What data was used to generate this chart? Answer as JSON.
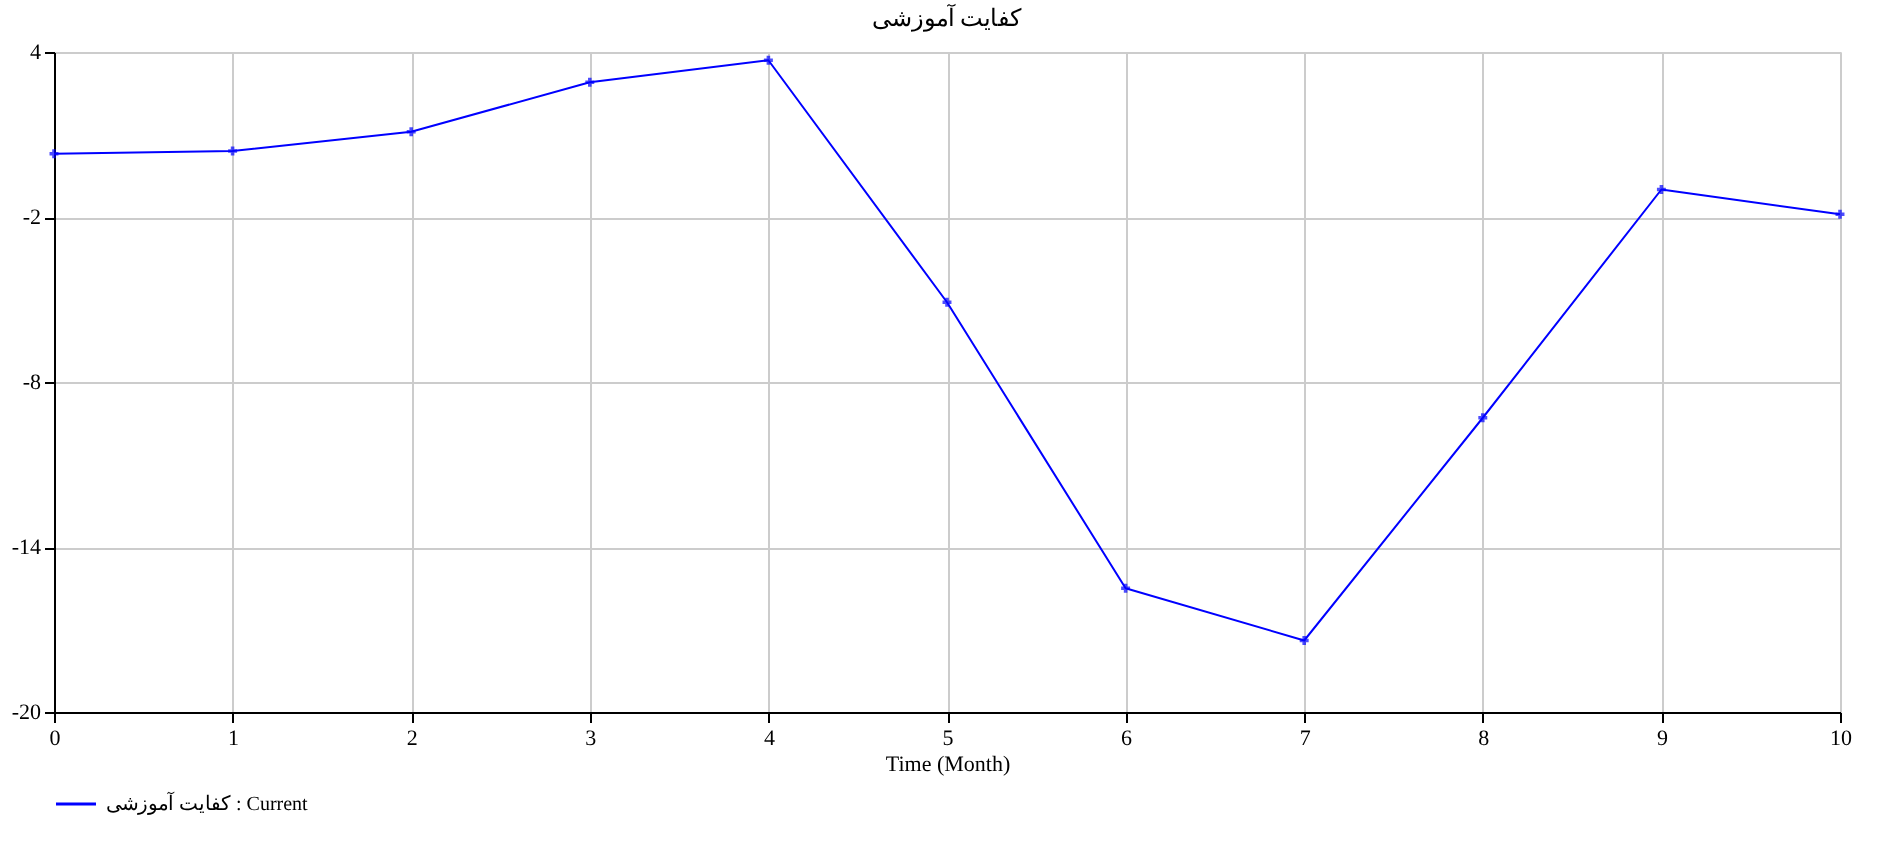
{
  "chart_data": {
    "type": "line",
    "title": "کفایت آموزشی",
    "xlabel": "Time (Month)",
    "x": [
      0,
      1,
      2,
      3,
      4,
      5,
      6,
      7,
      8,
      9,
      10
    ],
    "series": [
      {
        "name": "کفایت آموزشی : Current",
        "color": "#0000ff",
        "values": [
          0.3,
          0.4,
          1.1,
          2.9,
          3.7,
          -5.1,
          -15.5,
          -17.4,
          -9.3,
          -1.0,
          -1.9
        ]
      }
    ],
    "xlim": [
      0,
      10
    ],
    "xticks": [
      0,
      1,
      2,
      3,
      4,
      5,
      6,
      7,
      8,
      9,
      10
    ],
    "ylim": [
      -20,
      4
    ],
    "yticks": [
      4,
      -2,
      -8,
      -14,
      -20
    ],
    "grid": true,
    "legend": "bottom left",
    "marker": "cross",
    "line_style": "solid"
  }
}
